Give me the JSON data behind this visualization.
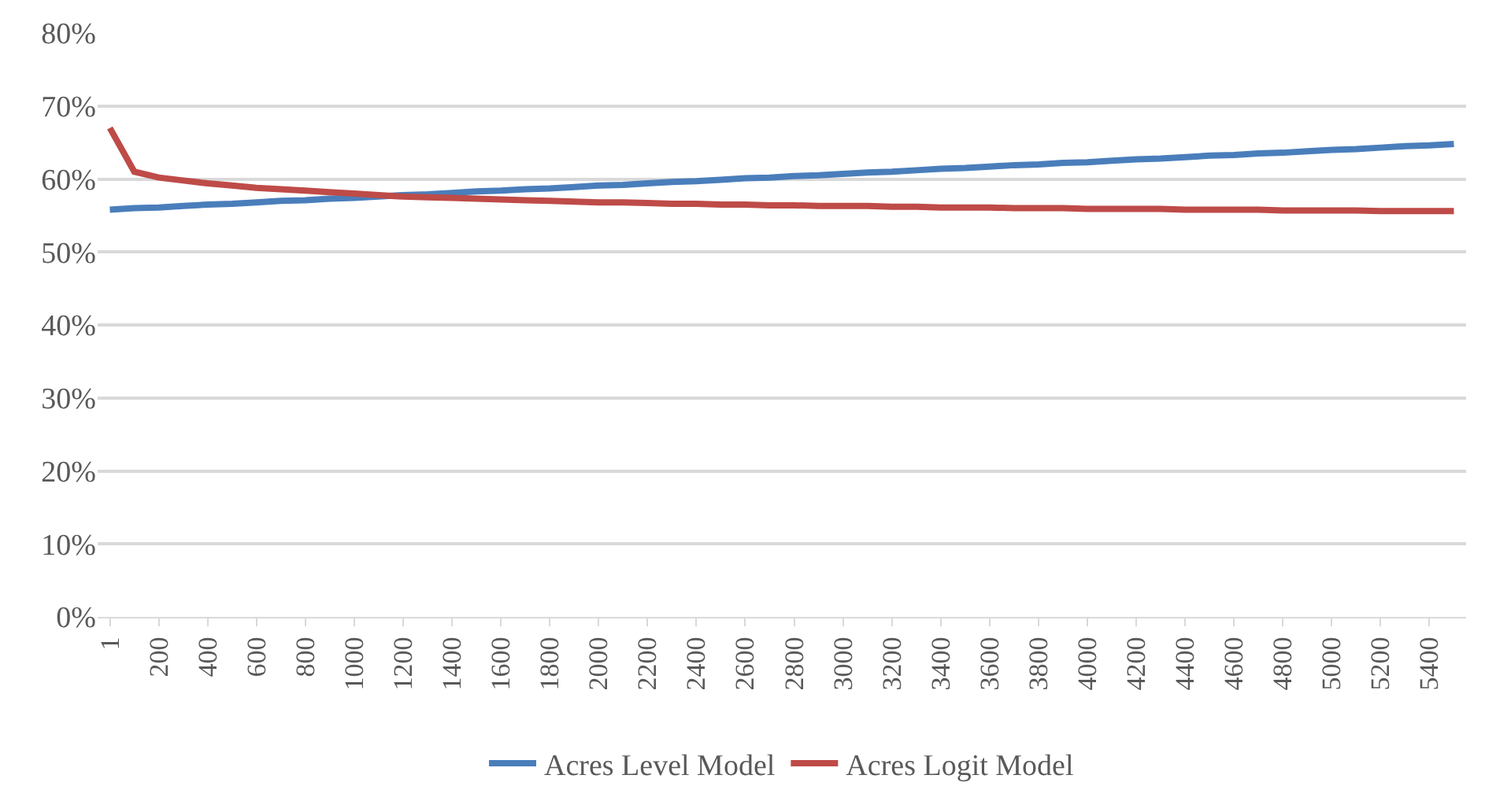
{
  "chart_data": {
    "type": "line",
    "categories": [
      "1",
      null,
      "200",
      null,
      "400",
      null,
      "600",
      null,
      "800",
      null,
      "1000",
      null,
      "1200",
      null,
      "1400",
      null,
      "1600",
      null,
      "1800",
      null,
      "2000",
      null,
      "2200",
      null,
      "2400",
      null,
      "2600",
      null,
      "2800",
      null,
      "3000",
      null,
      "3200",
      null,
      "3400",
      null,
      "3600",
      null,
      "3800",
      null,
      "4000",
      null,
      "4200",
      null,
      "4400",
      null,
      "4600",
      null,
      "4800",
      null,
      "5000",
      null,
      "5200",
      null,
      "5400",
      null
    ],
    "series": [
      {
        "name": "Acres Level Model",
        "color": "#4a7ebb",
        "values": [
          55.8,
          56.0,
          56.1,
          56.3,
          56.5,
          56.6,
          56.8,
          57.0,
          57.1,
          57.3,
          57.4,
          57.6,
          57.8,
          57.9,
          58.1,
          58.3,
          58.4,
          58.6,
          58.7,
          58.9,
          59.1,
          59.2,
          59.4,
          59.6,
          59.7,
          59.9,
          60.1,
          60.2,
          60.4,
          60.5,
          60.7,
          60.9,
          61.0,
          61.2,
          61.4,
          61.5,
          61.7,
          61.9,
          62.0,
          62.2,
          62.3,
          62.5,
          62.7,
          62.8,
          63.0,
          63.2,
          63.3,
          63.5,
          63.6,
          63.8,
          64.0,
          64.1,
          64.3,
          64.5,
          64.6,
          64.8
        ]
      },
      {
        "name": "Acres Logit Model",
        "color": "#be4b48",
        "values": [
          67.0,
          61.0,
          60.2,
          59.8,
          59.4,
          59.1,
          58.8,
          58.6,
          58.4,
          58.2,
          58.0,
          57.8,
          57.6,
          57.5,
          57.4,
          57.3,
          57.2,
          57.1,
          57.0,
          56.9,
          56.8,
          56.8,
          56.7,
          56.6,
          56.6,
          56.5,
          56.5,
          56.4,
          56.4,
          56.3,
          56.3,
          56.3,
          56.2,
          56.2,
          56.1,
          56.1,
          56.1,
          56.0,
          56.0,
          56.0,
          55.9,
          55.9,
          55.9,
          55.9,
          55.8,
          55.8,
          55.8,
          55.8,
          55.7,
          55.7,
          55.7,
          55.7,
          55.6,
          55.6,
          55.6,
          55.6
        ]
      }
    ],
    "ylim": [
      0,
      80
    ],
    "yticks": [
      {
        "value": 0,
        "label": "0%"
      },
      {
        "value": 10,
        "label": "10%"
      },
      {
        "value": 20,
        "label": "20%"
      },
      {
        "value": 30,
        "label": "30%"
      },
      {
        "value": 40,
        "label": "40%"
      },
      {
        "value": 50,
        "label": "50%"
      },
      {
        "value": 60,
        "label": "60%"
      },
      {
        "value": 70,
        "label": "70%"
      },
      {
        "value": 80,
        "label": "80%"
      }
    ],
    "grid": "y",
    "legend": "bottom",
    "marker": "none",
    "line_style": "solid"
  }
}
